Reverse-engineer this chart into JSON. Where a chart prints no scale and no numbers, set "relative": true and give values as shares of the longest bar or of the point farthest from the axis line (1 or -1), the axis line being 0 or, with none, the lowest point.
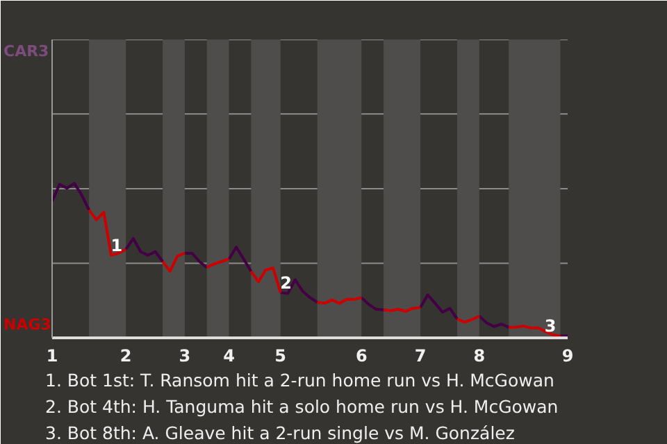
{
  "chart_data": {
    "type": "line",
    "relative": true,
    "categories": [
      "1",
      null,
      null,
      null,
      null,
      null,
      null,
      null,
      null,
      null,
      "2",
      null,
      null,
      null,
      null,
      null,
      null,
      null,
      "3",
      null,
      null,
      null,
      null,
      null,
      "4",
      null,
      null,
      null,
      null,
      null,
      null,
      "5",
      null,
      null,
      null,
      null,
      null,
      null,
      null,
      null,
      null,
      null,
      "6",
      null,
      null,
      null,
      null,
      null,
      null,
      null,
      "7",
      null,
      null,
      null,
      null,
      null,
      null,
      null,
      "8",
      null,
      null,
      null,
      null,
      null,
      null,
      null,
      null,
      null,
      null,
      null,
      "9"
    ],
    "marker": "none",
    "line_style": "solid",
    "ref_lines": [
      {
        "axis": "y",
        "value": 0.483,
        "color": "#8c8c8c"
      },
      {
        "axis": "y",
        "value": 0.966,
        "color": "#8c8c8c"
      },
      {
        "axis": "y",
        "value": 1.449,
        "color": "#8c8c8c"
      },
      {
        "axis": "y",
        "value": 1.931,
        "color": "#8c8c8c"
      }
    ],
    "series": [
      {
        "color": "#440044",
        "values": [
          0.886,
          0.994,
          0.969,
          1,
          0.925,
          0.828,
          null,
          null,
          null,
          null,
          0.573,
          0.643,
          0.558,
          0.535,
          0.558,
          0.494,
          null,
          null,
          0.548,
          0.548,
          0.494,
          0.456,
          null,
          null,
          0.51,
          0.587,
          0.51,
          0.431,
          null,
          null,
          null,
          0.293,
          0.288,
          0.376,
          0.303,
          0.261,
          0.23,
          null,
          null,
          null,
          null,
          null,
          0.261,
          0.216,
          0.185,
          0.181,
          null,
          null,
          null,
          null,
          0.197,
          0.278,
          0.224,
          0.166,
          0.191,
          0.122,
          null,
          null,
          0.141,
          0.097,
          0.073,
          0.089,
          0.069,
          null,
          null,
          null,
          null,
          null,
          null,
          0.012,
          0.012
        ]
      },
      {
        "color": "#cc0000",
        "values": [
          null,
          null,
          null,
          null,
          null,
          0.828,
          0.764,
          0.813,
          0.535,
          0.548,
          0.573,
          null,
          null,
          null,
          null,
          0.494,
          0.432,
          0.529,
          0.548,
          null,
          null,
          0.456,
          0.479,
          0.494,
          0.51,
          null,
          null,
          0.431,
          0.363,
          0.44,
          0.452,
          0.293,
          null,
          null,
          null,
          null,
          0.23,
          0.224,
          0.245,
          0.224,
          0.249,
          0.249,
          0.261,
          null,
          null,
          0.181,
          0.176,
          0.185,
          0.172,
          0.191,
          0.197,
          null,
          null,
          null,
          null,
          0.122,
          0.102,
          0.118,
          0.141,
          null,
          null,
          null,
          0.069,
          0.069,
          0.077,
          0.064,
          0.064,
          0.041,
          0.019,
          0.012,
          null
        ]
      }
    ],
    "annotations": [
      {
        "text": "1",
        "y": 0.535
      },
      {
        "text": "2",
        "y": 0.293
      },
      {
        "text": "3",
        "y": 0.012
      },
      "CAR3",
      "NAG3",
      "1. Bot 1st: T. Ransom hit a 2-run home run vs H. McGowan",
      "2. Bot 4th: H. Tanguma hit a solo home run vs H. McGowan",
      "3. Bot 8th: A. Gleave hit a 2-run single vs M. González"
    ]
  }
}
